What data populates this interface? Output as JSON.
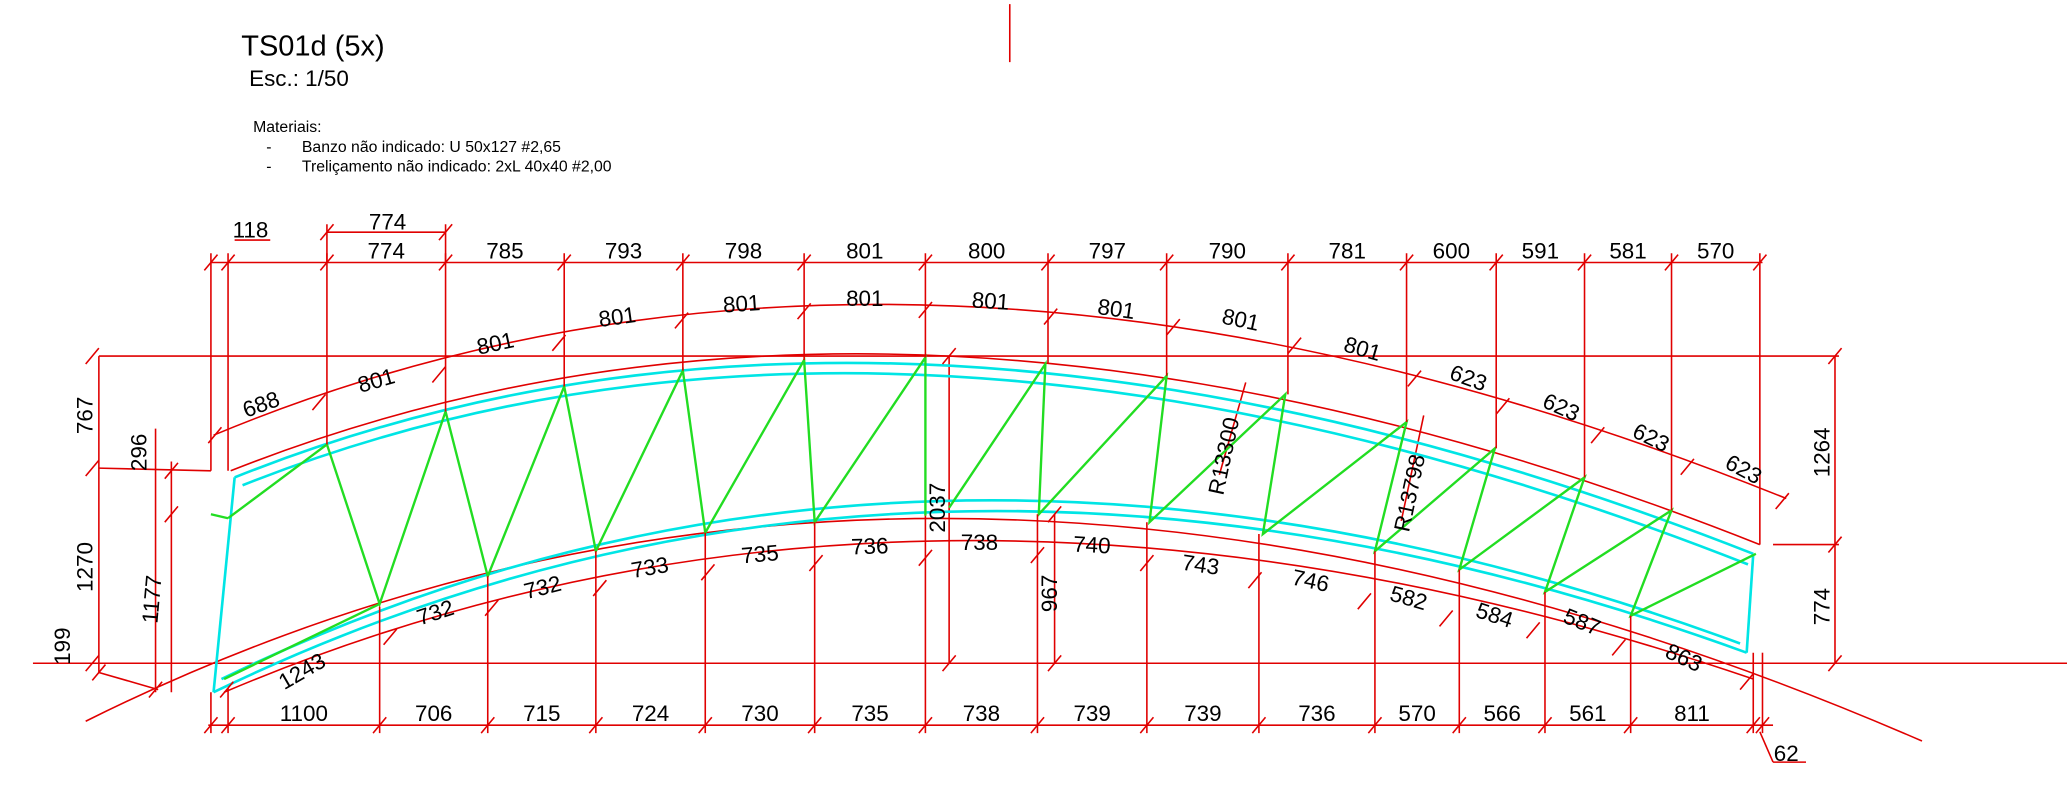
{
  "header": {
    "title": "TS01d (5x)",
    "scale": "Esc.: 1/50"
  },
  "materials": {
    "heading": "Materiais:",
    "items": [
      {
        "bullet": "-",
        "text": "Banzo não indicado: U 50x127 #2,65"
      },
      {
        "bullet": "-",
        "text": "Treliçamento não indicado: 2xL 40x40 #2,00"
      }
    ]
  },
  "dimensions": {
    "top_overall": [
      118,
      774
    ],
    "top_row": [
      774,
      785,
      793,
      798,
      801,
      800,
      797,
      790,
      781,
      600,
      591,
      581,
      570
    ],
    "top_chord": [
      688,
      801,
      801,
      801,
      801,
      801,
      801,
      801,
      801,
      801,
      623,
      623,
      623,
      623
    ],
    "bottom_chord": [
      1243,
      732,
      732,
      733,
      735,
      736,
      738,
      740,
      743,
      746,
      582,
      584,
      587,
      863
    ],
    "bottom_row": [
      1100,
      706,
      715,
      724,
      730,
      735,
      738,
      739,
      739,
      736,
      570,
      566,
      561,
      811
    ],
    "bottom_end": 62,
    "left": [
      767,
      296,
      1270,
      1177,
      199
    ],
    "right": [
      1264,
      774
    ],
    "middle": [
      2037,
      967
    ],
    "radii": [
      "R13300",
      "R13798"
    ]
  }
}
